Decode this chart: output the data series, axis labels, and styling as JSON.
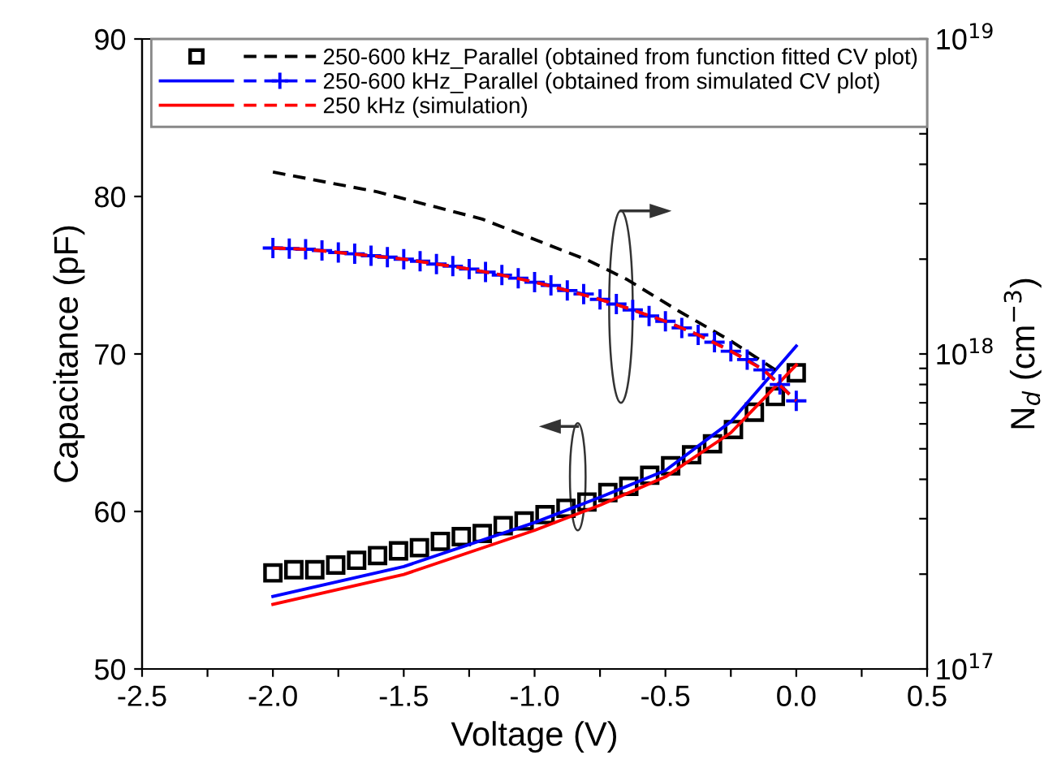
{
  "chart_data": {
    "type": "line",
    "xlabel": "Voltage (V)",
    "ylabel": "Capacitance (pF)",
    "y2label": "N$_{d}$ (cm$^{−3}$)",
    "xlim": [
      -2.5,
      0.5
    ],
    "xticks": [
      -2.5,
      {
        "value": -2.25,
        "label": null
      },
      {
        "value": -2.0,
        "label": "-2.0"
      },
      {
        "value": -1.75,
        "label": null
      },
      -1.5,
      {
        "value": -1.25,
        "label": null
      },
      {
        "value": -1.0,
        "label": "-1.0"
      },
      {
        "value": -0.75,
        "label": null
      },
      -0.5,
      {
        "value": -0.25,
        "label": null
      },
      {
        "value": 0.0,
        "label": "0.0"
      },
      {
        "value": 0.25,
        "label": null
      },
      0.5
    ],
    "ylim": [
      50,
      90
    ],
    "yticks": [
      50,
      60,
      70,
      80,
      90
    ],
    "log": "y2",
    "y2lim": [
      1e+17,
      1e+19
    ],
    "y2ticks": [
      {
        "value": 1e+17,
        "label": "10$^{17}$"
      },
      {
        "value": 2e+17,
        "label": null
      },
      {
        "value": 3e+17,
        "label": null
      },
      {
        "value": 4e+17,
        "label": null
      },
      {
        "value": 5e+17,
        "label": null
      },
      {
        "value": 6e+17,
        "label": null
      },
      {
        "value": 7e+17,
        "label": null
      },
      {
        "value": 8e+17,
        "label": null
      },
      {
        "value": 9e+17,
        "label": null
      },
      {
        "value": 1e+18,
        "label": "10$^{18}$"
      },
      {
        "value": 2e+18,
        "label": null
      },
      {
        "value": 3e+18,
        "label": null
      },
      {
        "value": 4e+18,
        "label": null
      },
      {
        "value": 5e+18,
        "label": null
      },
      {
        "value": 6e+18,
        "label": null
      },
      {
        "value": 7e+18,
        "label": null
      },
      {
        "value": 8e+18,
        "label": null
      },
      {
        "value": 9e+18,
        "label": null
      },
      {
        "value": 1e+19,
        "label": "10$^{19}$"
      }
    ],
    "legend": "top right",
    "series": [
      {
        "type": "scatter",
        "marker": "square",
        "color": "#000000",
        "x": [
          -2.0,
          -1.92,
          -1.84,
          -1.76,
          -1.68,
          -1.6,
          -1.52,
          -1.44,
          -1.36,
          -1.28,
          -1.2,
          -1.12,
          -1.04,
          -0.96,
          -0.88,
          -0.8,
          -0.72,
          -0.64,
          -0.56,
          -0.48,
          -0.4,
          -0.32,
          -0.24,
          -0.16,
          -0.08,
          0.0
        ],
        "values": [
          56.1,
          56.3,
          56.3,
          56.6,
          56.9,
          57.2,
          57.5,
          57.7,
          58.1,
          58.4,
          58.6,
          59.1,
          59.4,
          59.8,
          60.2,
          60.6,
          61.2,
          61.6,
          62.3,
          62.9,
          63.6,
          64.3,
          65.2,
          66.3,
          67.3,
          68.8
        ]
      },
      {
        "line_style": "solid",
        "color": "#0000ff",
        "x": [
          -2.0,
          -1.5,
          -1.0,
          -0.75,
          -0.5,
          -0.25,
          0.0
        ],
        "values": [
          54.6,
          56.5,
          59.3,
          60.9,
          62.6,
          65.7,
          70.5
        ]
      },
      {
        "line_style": "solid",
        "color": "#ff0000",
        "x": [
          -2.0,
          -1.5,
          -1.0,
          -0.75,
          -0.5,
          -0.25,
          0.0
        ],
        "values": [
          54.1,
          56.0,
          58.8,
          60.4,
          62.2,
          65.0,
          69.3
        ]
      },
      {
        "name": "250-600 kHz_Parallel (obtained from function fitted CV plot)",
        "axis": "y2",
        "line_style": "dashed",
        "color": "#000000",
        "x": [
          -2.0,
          -1.6,
          -1.2,
          -0.8,
          -0.65,
          -0.45,
          -0.25,
          -0.08
        ],
        "values": [
          3.78e+18,
          3.27e+18,
          2.68e+18,
          1.99e+18,
          1.73e+18,
          1.37e+18,
          1.1e+18,
          8.9e+17
        ]
      },
      {
        "name": "250-600 kHz_Parallel (obtained from simulated CV plot)",
        "axis": "y2",
        "line_style": "dashed",
        "marker": "cross",
        "color": "#0000ff",
        "x": [
          -2.0,
          -1.9375,
          -1.875,
          -1.8125,
          -1.75,
          -1.6875,
          -1.625,
          -1.5625,
          -1.5,
          -1.4375,
          -1.375,
          -1.3125,
          -1.25,
          -1.1875,
          -1.125,
          -1.0625,
          -1.0,
          -0.9375,
          -0.875,
          -0.8125,
          -0.75,
          -0.6875,
          -0.625,
          -0.5625,
          -0.5,
          -0.4375,
          -0.375,
          -0.3125,
          -0.25,
          -0.1875,
          -0.125,
          -0.0625,
          0.0
        ],
        "values": [
          2.17e+18,
          2.16e+18,
          2.15e+18,
          2.13e+18,
          2.1e+18,
          2.08e+18,
          2.05e+18,
          2.03e+18,
          2e+18,
          1.97e+18,
          1.93e+18,
          1.9e+18,
          1.86e+18,
          1.82e+18,
          1.78e+18,
          1.74e+18,
          1.69e+18,
          1.65e+18,
          1.59e+18,
          1.55e+18,
          1.49e+18,
          1.44e+18,
          1.38e+18,
          1.32e+18,
          1.27e+18,
          1.21e+18,
          1.15e+18,
          1.09e+18,
          1.02e+18,
          9.6e+17,
          8.9e+17,
          8e+17,
          7.1e+17
        ]
      },
      {
        "name": "250 kHz (simulation)",
        "line_style": "dashed",
        "axis": "y2",
        "color": "#ff0000",
        "x": [
          -2.0,
          -1.875,
          -1.75,
          -1.625,
          -1.5,
          -1.375,
          -1.25,
          -1.125,
          -1.0,
          -0.875,
          -0.75,
          -0.625,
          -0.5,
          -0.375,
          -0.25,
          -0.125,
          0.0
        ],
        "values": [
          2.17e+18,
          2.15e+18,
          2.1e+18,
          2.05e+18,
          2e+18,
          1.93e+18,
          1.86e+18,
          1.78e+18,
          1.69e+18,
          1.59e+18,
          1.49e+18,
          1.38e+18,
          1.27e+18,
          1.15e+18,
          1.02e+18,
          8.9e+17,
          7.1e+17
        ]
      }
    ]
  }
}
